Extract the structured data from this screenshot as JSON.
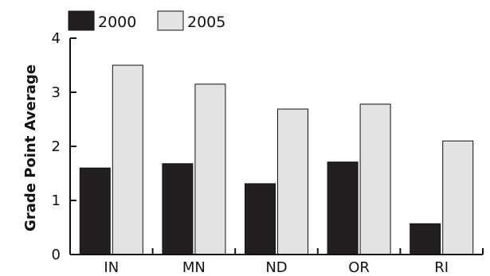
{
  "chart_data": {
    "type": "bar",
    "title": "",
    "xlabel": "",
    "ylabel": "Grade Point Average",
    "ylim": [
      0,
      4
    ],
    "yticks": [
      0,
      1,
      2,
      3,
      4
    ],
    "categories": [
      "IN",
      "MN",
      "ND",
      "OR",
      "RI"
    ],
    "series": [
      {
        "name": "2000",
        "values": [
          1.6,
          1.68,
          1.31,
          1.71,
          0.57
        ],
        "color": "#231f20"
      },
      {
        "name": "2005",
        "values": [
          3.5,
          3.15,
          2.69,
          2.78,
          2.1
        ],
        "color": "#e3e3e3"
      }
    ],
    "grid": false,
    "legend": "top-left"
  }
}
